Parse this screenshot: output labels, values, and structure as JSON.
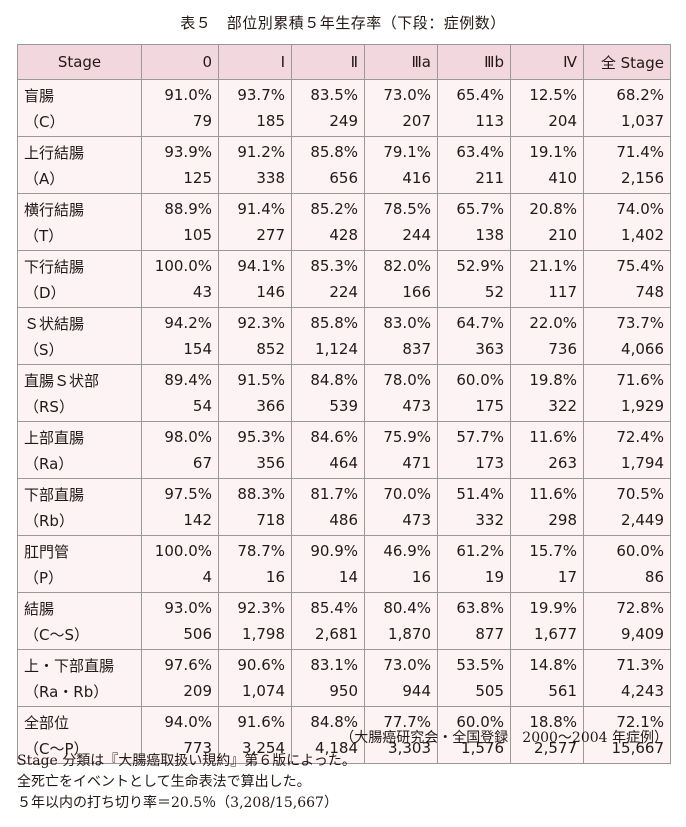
{
  "title": "表５　部位別累積５年生存率（下段：症例数）",
  "columns": [
    "Stage",
    "0",
    "Ⅰ",
    "Ⅱ",
    "Ⅲa",
    "Ⅲb",
    "Ⅳ",
    "全 Stage"
  ],
  "rows": [
    {
      "site": "盲腸",
      "code": "（C）",
      "rates": [
        "91.0%",
        "93.7%",
        "83.5%",
        "73.0%",
        "65.4%",
        "12.5%",
        "68.2%"
      ],
      "counts": [
        "79",
        "185",
        "249",
        "207",
        "113",
        "204",
        "1,037"
      ]
    },
    {
      "site": "上行結腸",
      "code": "（A）",
      "rates": [
        "93.9%",
        "91.2%",
        "85.8%",
        "79.1%",
        "63.4%",
        "19.1%",
        "71.4%"
      ],
      "counts": [
        "125",
        "338",
        "656",
        "416",
        "211",
        "410",
        "2,156"
      ]
    },
    {
      "site": "横行結腸",
      "code": "（T）",
      "rates": [
        "88.9%",
        "91.4%",
        "85.2%",
        "78.5%",
        "65.7%",
        "20.8%",
        "74.0%"
      ],
      "counts": [
        "105",
        "277",
        "428",
        "244",
        "138",
        "210",
        "1,402"
      ]
    },
    {
      "site": "下行結腸",
      "code": "（D）",
      "rates": [
        "100.0%",
        "94.1%",
        "85.3%",
        "82.0%",
        "52.9%",
        "21.1%",
        "75.4%"
      ],
      "counts": [
        "43",
        "146",
        "224",
        "166",
        "52",
        "117",
        "748"
      ]
    },
    {
      "site": "Ｓ状結腸",
      "code": "（S）",
      "rates": [
        "94.2%",
        "92.3%",
        "85.8%",
        "83.0%",
        "64.7%",
        "22.0%",
        "73.7%"
      ],
      "counts": [
        "154",
        "852",
        "1,124",
        "837",
        "363",
        "736",
        "4,066"
      ]
    },
    {
      "site": "直腸Ｓ状部",
      "code": "（RS）",
      "rates": [
        "89.4%",
        "91.5%",
        "84.8%",
        "78.0%",
        "60.0%",
        "19.8%",
        "71.6%"
      ],
      "counts": [
        "54",
        "366",
        "539",
        "473",
        "175",
        "322",
        "1,929"
      ]
    },
    {
      "site": "上部直腸",
      "code": "（Ra）",
      "rates": [
        "98.0%",
        "95.3%",
        "84.6%",
        "75.9%",
        "57.7%",
        "11.6%",
        "72.4%"
      ],
      "counts": [
        "67",
        "356",
        "464",
        "471",
        "173",
        "263",
        "1,794"
      ]
    },
    {
      "site": "下部直腸",
      "code": "（Rb）",
      "rates": [
        "97.5%",
        "88.3%",
        "81.7%",
        "70.0%",
        "51.4%",
        "11.6%",
        "70.5%"
      ],
      "counts": [
        "142",
        "718",
        "486",
        "473",
        "332",
        "298",
        "2,449"
      ]
    },
    {
      "site": "肛門管",
      "code": "（P）",
      "rates": [
        "100.0%",
        "78.7%",
        "90.9%",
        "46.9%",
        "61.2%",
        "15.7%",
        "60.0%"
      ],
      "counts": [
        "4",
        "16",
        "14",
        "16",
        "19",
        "17",
        "86"
      ]
    },
    {
      "site": "結腸",
      "code": "（C〜S）",
      "rates": [
        "93.0%",
        "92.3%",
        "85.4%",
        "80.4%",
        "63.8%",
        "19.9%",
        "72.8%"
      ],
      "counts": [
        "506",
        "1,798",
        "2,681",
        "1,870",
        "877",
        "1,677",
        "9,409"
      ]
    },
    {
      "site": "上・下部直腸",
      "code": "（Ra・Rb）",
      "rates": [
        "97.6%",
        "90.6%",
        "83.1%",
        "73.0%",
        "53.5%",
        "14.8%",
        "71.3%"
      ],
      "counts": [
        "209",
        "1,074",
        "950",
        "944",
        "505",
        "561",
        "4,243"
      ]
    },
    {
      "site": "全部位",
      "code": "（C〜P）",
      "rates": [
        "94.0%",
        "91.6%",
        "84.8%",
        "77.7%",
        "60.0%",
        "18.8%",
        "72.1%"
      ],
      "counts": [
        "773",
        "3,254",
        "4,184",
        "3,303",
        "1,576",
        "2,577",
        "15,667"
      ]
    }
  ],
  "source": "（大腸癌研究会・全国登録　2000〜2004 年症例）",
  "notes": [
    "Stage 分類は『大腸癌取扱い規約』第６版によった。",
    "全死亡をイベントとして生命表法で算出した。",
    "５年以内の打ち切り率＝20.5％（3,208/15,667）"
  ]
}
